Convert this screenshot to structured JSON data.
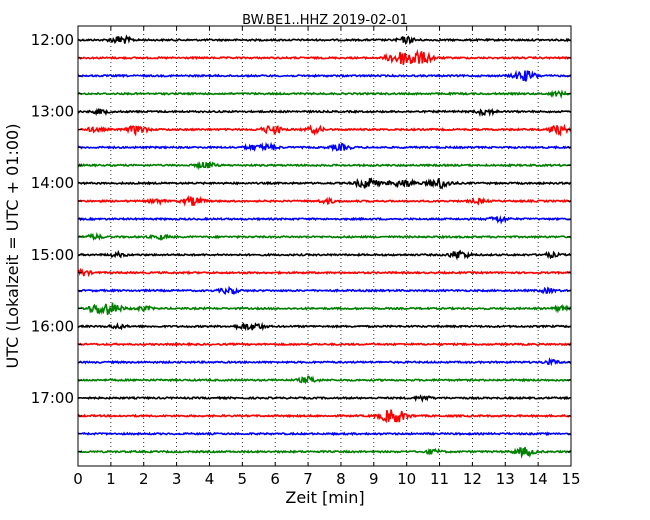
{
  "chart_data": {
    "type": "line",
    "title": "BW.BE1..HHZ 2019-02-01",
    "xlabel": "Zeit  [min]",
    "ylabel": "UTC (Lokalzeit = UTC + 01:00)",
    "xlim": [
      0,
      15
    ],
    "x_ticks": [
      "0",
      "1",
      "2",
      "3",
      "4",
      "5",
      "6",
      "7",
      "8",
      "9",
      "10",
      "11",
      "12",
      "13",
      "14",
      "15"
    ],
    "y_tick_labels": [
      "12:00",
      "13:00",
      "14:00",
      "15:00",
      "16:00",
      "17:00"
    ],
    "trace_interval_min": 15,
    "colors": [
      "#000000",
      "#ff0000",
      "#0000ff",
      "#008000"
    ],
    "grid": "vertical dotted",
    "traces": [
      {
        "start": "12:00",
        "color": "#000000",
        "events": [
          {
            "t": 1.3,
            "amp": 4
          },
          {
            "t": 10.0,
            "amp": 3
          }
        ]
      },
      {
        "start": "12:15",
        "color": "#ff0000",
        "events": [
          {
            "t": 9.6,
            "amp": 3
          },
          {
            "t": 10.1,
            "amp": 8
          },
          {
            "t": 10.6,
            "amp": 3
          }
        ]
      },
      {
        "start": "12:30",
        "color": "#0000ff",
        "events": [
          {
            "t": 13.6,
            "amp": 5
          }
        ]
      },
      {
        "start": "12:45",
        "color": "#008000",
        "events": [
          {
            "t": 14.6,
            "amp": 2
          }
        ]
      },
      {
        "start": "13:00",
        "color": "#000000",
        "events": [
          {
            "t": 0.7,
            "amp": 2
          },
          {
            "t": 12.4,
            "amp": 3
          }
        ]
      },
      {
        "start": "13:15",
        "color": "#ff0000",
        "events": [
          {
            "t": 0.5,
            "amp": 2
          },
          {
            "t": 1.8,
            "amp": 4
          },
          {
            "t": 5.9,
            "amp": 4
          },
          {
            "t": 7.2,
            "amp": 3
          },
          {
            "t": 14.6,
            "amp": 4
          }
        ]
      },
      {
        "start": "13:30",
        "color": "#0000ff",
        "events": [
          {
            "t": 5.3,
            "amp": 2
          },
          {
            "t": 5.8,
            "amp": 3
          },
          {
            "t": 8.0,
            "amp": 3
          }
        ]
      },
      {
        "start": "13:45",
        "color": "#008000",
        "events": [
          {
            "t": 3.9,
            "amp": 3
          }
        ]
      },
      {
        "start": "14:00",
        "color": "#000000",
        "events": [
          {
            "t": 8.8,
            "amp": 5
          },
          {
            "t": 10.0,
            "amp": 3
          },
          {
            "t": 11.0,
            "amp": 5
          },
          {
            "t": 9.6,
            "amp": 2
          }
        ]
      },
      {
        "start": "14:15",
        "color": "#ff0000",
        "events": [
          {
            "t": 2.4,
            "amp": 2
          },
          {
            "t": 3.5,
            "amp": 4
          },
          {
            "t": 7.6,
            "amp": 2
          },
          {
            "t": 12.2,
            "amp": 2
          }
        ]
      },
      {
        "start": "14:30",
        "color": "#0000ff",
        "events": [
          {
            "t": 12.8,
            "amp": 3
          }
        ]
      },
      {
        "start": "14:45",
        "color": "#008000",
        "events": [
          {
            "t": 0.5,
            "amp": 2
          },
          {
            "t": 2.5,
            "amp": 2
          }
        ]
      },
      {
        "start": "15:00",
        "color": "#000000",
        "events": [
          {
            "t": 1.2,
            "amp": 2
          },
          {
            "t": 11.6,
            "amp": 4
          },
          {
            "t": 14.4,
            "amp": 2
          }
        ]
      },
      {
        "start": "15:15",
        "color": "#ff0000",
        "events": [
          {
            "t": 0.1,
            "amp": 3
          }
        ]
      },
      {
        "start": "15:30",
        "color": "#0000ff",
        "events": [
          {
            "t": 4.6,
            "amp": 3
          },
          {
            "t": 14.3,
            "amp": 2
          }
        ]
      },
      {
        "start": "15:45",
        "color": "#008000",
        "events": [
          {
            "t": 0.6,
            "amp": 4
          },
          {
            "t": 1.0,
            "amp": 5
          },
          {
            "t": 2.0,
            "amp": 2
          },
          {
            "t": 14.7,
            "amp": 2
          }
        ]
      },
      {
        "start": "16:00",
        "color": "#000000",
        "events": [
          {
            "t": 1.2,
            "amp": 2
          },
          {
            "t": 5.0,
            "amp": 2
          },
          {
            "t": 5.4,
            "amp": 3
          }
        ]
      },
      {
        "start": "16:15",
        "color": "#ff0000",
        "events": []
      },
      {
        "start": "16:30",
        "color": "#0000ff",
        "events": [
          {
            "t": 14.4,
            "amp": 2
          }
        ]
      },
      {
        "start": "16:45",
        "color": "#008000",
        "events": [
          {
            "t": 7.0,
            "amp": 3
          }
        ]
      },
      {
        "start": "17:00",
        "color": "#000000",
        "events": [
          {
            "t": 10.5,
            "amp": 2
          }
        ]
      },
      {
        "start": "17:15",
        "color": "#ff0000",
        "events": [
          {
            "t": 9.6,
            "amp": 7
          }
        ]
      },
      {
        "start": "17:30",
        "color": "#0000ff",
        "events": []
      },
      {
        "start": "17:45",
        "color": "#008000",
        "events": [
          {
            "t": 13.6,
            "amp": 4
          },
          {
            "t": 10.8,
            "amp": 2
          }
        ]
      }
    ]
  }
}
